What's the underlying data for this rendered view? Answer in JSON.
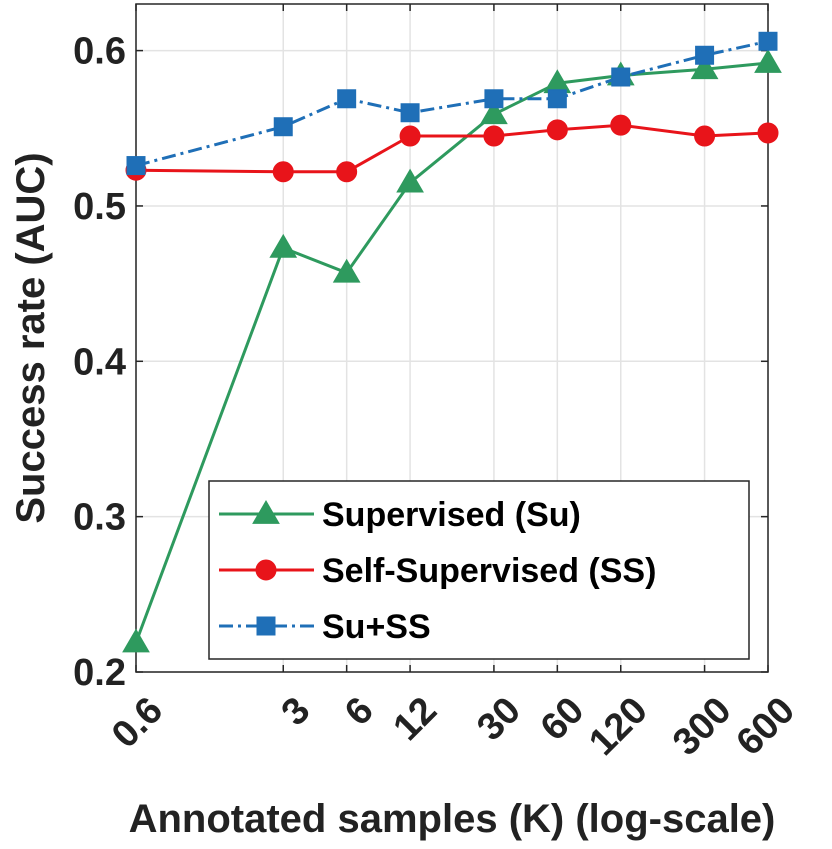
{
  "chart_data": {
    "type": "line",
    "title": "",
    "xlabel": "Annotated samples (K) (log-scale)",
    "ylabel": "Success rate (AUC)",
    "xscale": "log",
    "x": [
      0.6,
      3,
      6,
      12,
      30,
      60,
      120,
      300,
      600
    ],
    "x_tick_labels": [
      "0.6",
      "3",
      "6",
      "12",
      "30",
      "60",
      "120",
      "300",
      "600"
    ],
    "y_ticks": [
      0.2,
      0.3,
      0.4,
      0.5,
      0.6
    ],
    "y_tick_labels": [
      "0.2",
      "0.3",
      "0.4",
      "0.5",
      "0.6"
    ],
    "ylim": [
      0.2,
      0.63
    ],
    "xlim": [
      0.6,
      600
    ],
    "grid": true,
    "legend_position": "bottom-right",
    "series": [
      {
        "name": "Supervised (Su)",
        "color": "#2e9a5e",
        "marker": "triangle",
        "line_style": "solid",
        "values": [
          0.219,
          0.473,
          0.457,
          0.515,
          0.559,
          0.579,
          0.584,
          0.588,
          0.592
        ]
      },
      {
        "name": "Self-Supervised (SS)",
        "color": "#e8141a",
        "marker": "circle",
        "line_style": "solid",
        "values": [
          0.523,
          0.522,
          0.522,
          0.545,
          0.545,
          0.549,
          0.552,
          0.545,
          0.547
        ]
      },
      {
        "name": "Su+SS",
        "color": "#1f6fb7",
        "marker": "square",
        "line_style": "dashdot",
        "values": [
          0.526,
          0.551,
          0.569,
          0.56,
          0.569,
          0.569,
          0.583,
          0.597,
          0.606
        ]
      }
    ]
  }
}
